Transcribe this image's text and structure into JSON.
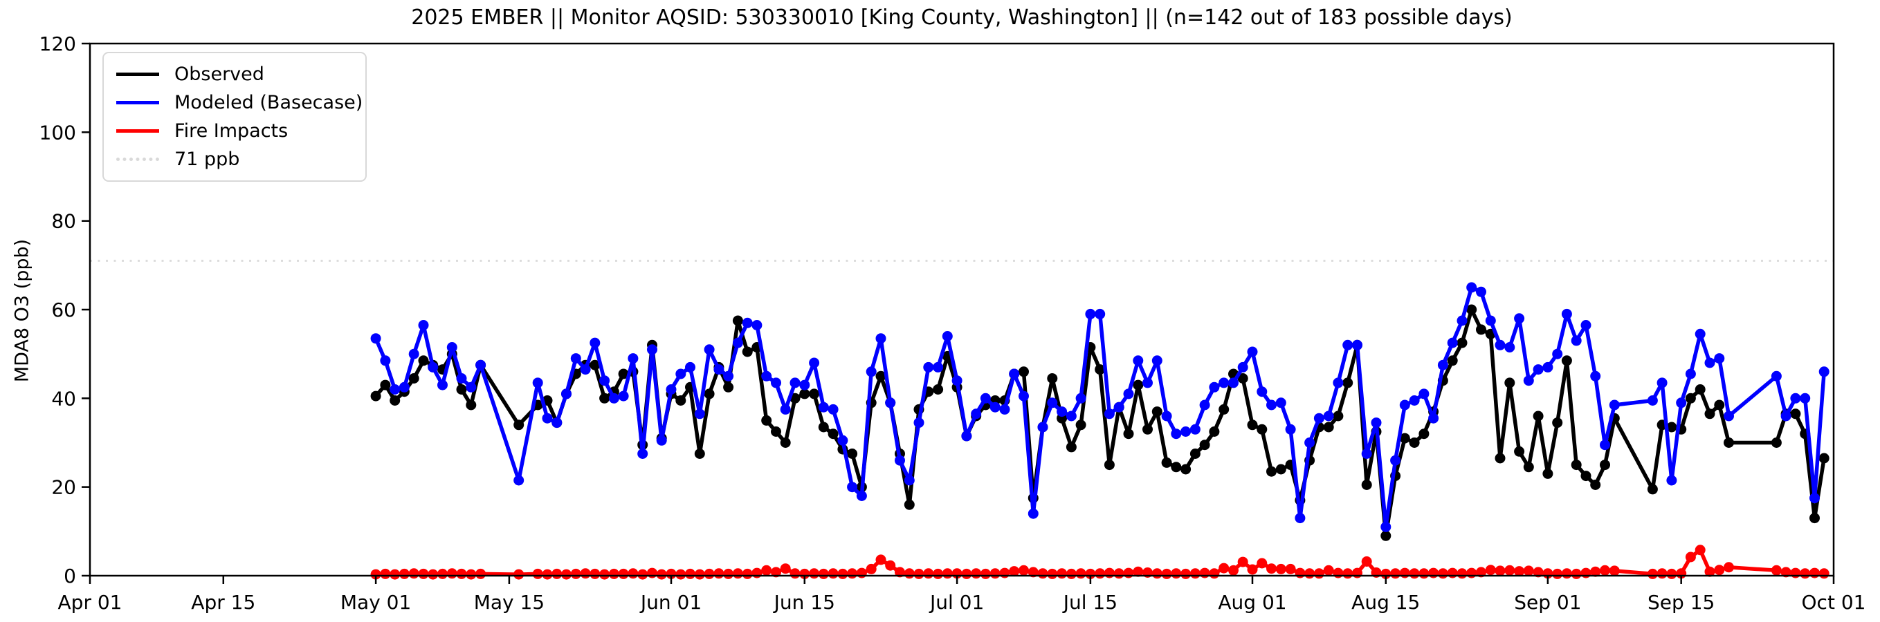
{
  "title": "2025 EMBER || Monitor AQSID: 530330010 [King County, Washington] || (n=142 out of 183 possible days)",
  "y_axis": {
    "label": "MDA8 O3 (ppb)",
    "ticks": [
      0,
      20,
      40,
      60,
      80,
      100,
      120
    ],
    "min": 0,
    "max": 120
  },
  "x_axis": {
    "ticks": [
      {
        "label": "Apr 01",
        "day": 0
      },
      {
        "label": "Apr 15",
        "day": 14
      },
      {
        "label": "May 01",
        "day": 30
      },
      {
        "label": "May 15",
        "day": 44
      },
      {
        "label": "Jun 01",
        "day": 61
      },
      {
        "label": "Jun 15",
        "day": 75
      },
      {
        "label": "Jul 01",
        "day": 91
      },
      {
        "label": "Jul 15",
        "day": 105
      },
      {
        "label": "Aug 01",
        "day": 122
      },
      {
        "label": "Aug 15",
        "day": 136
      },
      {
        "label": "Sep 01",
        "day": 153
      },
      {
        "label": "Sep 15",
        "day": 167
      },
      {
        "label": "Oct 01",
        "day": 183
      }
    ],
    "min_day": 0,
    "max_day": 183
  },
  "legend": {
    "items": [
      {
        "label": "Observed",
        "color": "#000000",
        "style": "solid"
      },
      {
        "label": "Modeled (Basecase)",
        "color": "#0000ff",
        "style": "solid"
      },
      {
        "label": "Fire Impacts",
        "color": "#ff0000",
        "style": "solid"
      },
      {
        "label": "71 ppb",
        "color": "#d9d9d9",
        "style": "dotted"
      }
    ]
  },
  "threshold": {
    "value": 71,
    "label": "71 ppb",
    "color": "#dcdcdc"
  },
  "colors": {
    "observed": "#000000",
    "modeled": "#0000ff",
    "fire": "#ff0000",
    "axes": "#000000"
  },
  "chart_data": {
    "type": "line",
    "title": "2025 EMBER || Monitor AQSID: 530330010 [King County, Washington] || (n=142 out of 183 possible days)",
    "xlabel": "",
    "ylabel": "MDA8 O3 (ppb)",
    "ylim": [
      0,
      120
    ],
    "xlim": [
      "Apr 01",
      "Oct 01"
    ],
    "grid": false,
    "legend_position": "upper left",
    "threshold_ppb": 71,
    "n_days": 142,
    "possible_days": 183,
    "marker": "circle",
    "dates": [
      "05-01",
      "05-02",
      "05-03",
      "05-04",
      "05-05",
      "05-06",
      "05-07",
      "05-08",
      "05-09",
      "05-10",
      "05-11",
      "05-12",
      "05-16",
      "05-18",
      "05-19",
      "05-20",
      "05-21",
      "05-22",
      "05-23",
      "05-24",
      "05-25",
      "05-26",
      "05-27",
      "05-28",
      "05-29",
      "05-30",
      "05-31",
      "06-01",
      "06-02",
      "06-03",
      "06-04",
      "06-05",
      "06-06",
      "06-07",
      "06-08",
      "06-09",
      "06-10",
      "06-11",
      "06-12",
      "06-13",
      "06-14",
      "06-15",
      "06-16",
      "06-17",
      "06-18",
      "06-19",
      "06-20",
      "06-21",
      "06-22",
      "06-23",
      "06-24",
      "06-25",
      "06-26",
      "06-27",
      "06-28",
      "06-29",
      "06-30",
      "07-01",
      "07-02",
      "07-03",
      "07-04",
      "07-05",
      "07-06",
      "07-07",
      "07-08",
      "07-09",
      "07-10",
      "07-11",
      "07-12",
      "07-13",
      "07-14",
      "07-15",
      "07-16",
      "07-17",
      "07-18",
      "07-19",
      "07-20",
      "07-21",
      "07-22",
      "07-23",
      "07-24",
      "07-25",
      "07-26",
      "07-27",
      "07-28",
      "07-29",
      "07-30",
      "07-31",
      "08-01",
      "08-02",
      "08-03",
      "08-04",
      "08-05",
      "08-06",
      "08-07",
      "08-08",
      "08-09",
      "08-10",
      "08-11",
      "08-12",
      "08-13",
      "08-14",
      "08-15",
      "08-16",
      "08-17",
      "08-18",
      "08-19",
      "08-20",
      "08-21",
      "08-22",
      "08-23",
      "08-24",
      "08-25",
      "08-26",
      "08-27",
      "08-28",
      "08-29",
      "08-30",
      "08-31",
      "09-01",
      "09-02",
      "09-03",
      "09-04",
      "09-05",
      "09-06",
      "09-07",
      "09-08",
      "09-12",
      "09-13",
      "09-14",
      "09-15",
      "09-16",
      "09-17",
      "09-18",
      "09-19",
      "09-20",
      "09-25",
      "09-26",
      "09-27",
      "09-28",
      "09-29",
      "09-30"
    ],
    "series": [
      {
        "name": "Observed",
        "color": "#000000",
        "values": [
          40.5,
          43,
          39.5,
          41.5,
          44.5,
          48.5,
          47.5,
          46.5,
          50,
          42,
          38.5,
          47.5,
          34,
          38.5,
          39.5,
          34.5,
          41,
          45.5,
          47.5,
          47.5,
          40,
          41.5,
          45.5,
          46,
          29.5,
          52,
          31,
          41,
          39.5,
          42.5,
          27.5,
          41,
          47,
          42.5,
          57.5,
          50.5,
          51.5,
          35,
          32.5,
          30,
          40,
          41,
          41,
          33.5,
          32,
          28.5,
          27.5,
          20,
          39,
          45,
          39,
          27.5,
          16,
          37.5,
          41.5,
          42,
          49.5,
          42.5,
          31.5,
          36,
          38.5,
          39.5,
          39.5,
          45.5,
          46,
          17.5,
          33.5,
          44.5,
          35.5,
          29,
          34,
          51.5,
          46.5,
          25,
          38,
          32,
          43,
          33,
          37,
          25.5,
          24.5,
          24,
          27.5,
          29.5,
          32.5,
          37.5,
          45.5,
          44.5,
          34,
          33,
          23.5,
          24,
          25,
          17,
          26,
          33.5,
          33.5,
          36,
          43.5,
          52,
          20.5,
          32.5,
          9,
          22.5,
          31,
          30,
          32,
          37,
          44,
          48.5,
          52.5,
          60,
          55.5,
          54.5,
          26.5,
          43.5,
          28,
          24.5,
          36,
          23,
          34.5,
          48.5,
          25,
          22.5,
          20.5,
          25,
          35.5,
          19.5,
          34,
          33.5,
          33,
          40,
          42,
          36.5,
          38.5,
          30,
          30,
          36.5,
          36.5,
          32,
          13,
          26.5
        ]
      },
      {
        "name": "Modeled (Basecase)",
        "color": "#0000ff",
        "values": [
          53.5,
          48.5,
          42,
          42.5,
          50,
          56.5,
          47,
          43,
          51.5,
          44.5,
          42.5,
          47.5,
          21.5,
          43.5,
          35.5,
          34.5,
          41,
          49,
          46.5,
          52.5,
          44,
          40,
          40.5,
          49,
          27.5,
          51,
          30.5,
          42,
          45.5,
          47,
          36.5,
          51,
          46.5,
          45,
          52.5,
          57,
          56.5,
          45,
          43.5,
          37.5,
          43.5,
          43,
          48,
          38,
          37.5,
          30.5,
          20,
          18,
          46,
          53.5,
          39,
          26,
          21.5,
          34.5,
          47,
          47,
          54,
          44,
          31.5,
          36.5,
          40,
          38,
          37.5,
          45.5,
          40.5,
          14,
          33.5,
          39,
          37,
          36,
          40,
          59,
          59,
          36.5,
          38,
          41,
          48.5,
          43.5,
          48.5,
          36,
          32,
          32.5,
          33,
          38.5,
          42.5,
          43.5,
          43.5,
          47,
          50.5,
          41.5,
          38.5,
          39,
          33,
          13,
          30,
          35.5,
          36,
          43.5,
          52,
          52,
          27.5,
          34.5,
          11,
          26,
          38.5,
          39.5,
          41,
          35.5,
          47.5,
          52.5,
          57.5,
          65,
          64,
          57.5,
          52,
          51.5,
          58,
          44,
          46.5,
          47,
          50,
          59,
          53,
          56.5,
          45,
          29.5,
          38.5,
          39.5,
          43.5,
          21.5,
          39,
          45.5,
          54.5,
          48,
          49,
          36,
          45,
          36,
          40,
          40,
          17.5,
          46
        ]
      },
      {
        "name": "Fire Impacts",
        "color": "#ff0000",
        "values": [
          0.3,
          0.4,
          0.3,
          0.4,
          0.5,
          0.4,
          0.3,
          0.4,
          0.5,
          0.4,
          0.3,
          0.4,
          0.3,
          0.4,
          0.3,
          0.4,
          0.3,
          0.4,
          0.5,
          0.4,
          0.3,
          0.4,
          0.4,
          0.5,
          0.3,
          0.6,
          0.3,
          0.4,
          0.3,
          0.4,
          0.3,
          0.4,
          0.5,
          0.4,
          0.5,
          0.4,
          0.6,
          1.2,
          0.8,
          1.6,
          0.5,
          0.4,
          0.5,
          0.4,
          0.5,
          0.4,
          0.5,
          0.6,
          1.5,
          3.6,
          2.3,
          0.8,
          0.5,
          0.4,
          0.5,
          0.4,
          0.5,
          0.5,
          0.4,
          0.5,
          0.4,
          0.5,
          0.6,
          1.0,
          1.2,
          0.8,
          0.5,
          0.4,
          0.5,
          0.4,
          0.5,
          0.4,
          0.5,
          0.6,
          0.5,
          0.6,
          0.9,
          0.7,
          0.5,
          0.4,
          0.5,
          0.4,
          0.5,
          0.6,
          0.5,
          1.7,
          1.2,
          3.1,
          1.4,
          2.8,
          1.6,
          1.5,
          1.5,
          0.6,
          0.5,
          0.5,
          1.2,
          0.6,
          0.5,
          0.6,
          3.2,
          0.7,
          0.4,
          0.5,
          0.6,
          0.5,
          0.5,
          0.6,
          0.5,
          0.6,
          0.5,
          0.6,
          0.8,
          1.3,
          1.1,
          1.2,
          1.0,
          1.1,
          0.8,
          0.5,
          0.4,
          0.5,
          0.4,
          0.6,
          0.9,
          1.2,
          1.1,
          0.4,
          0.5,
          0.4,
          0.5,
          4.2,
          5.8,
          0.9,
          1.3,
          1.9,
          1.2,
          0.8,
          0.6,
          0.5,
          0.6,
          0.5
        ]
      }
    ]
  }
}
